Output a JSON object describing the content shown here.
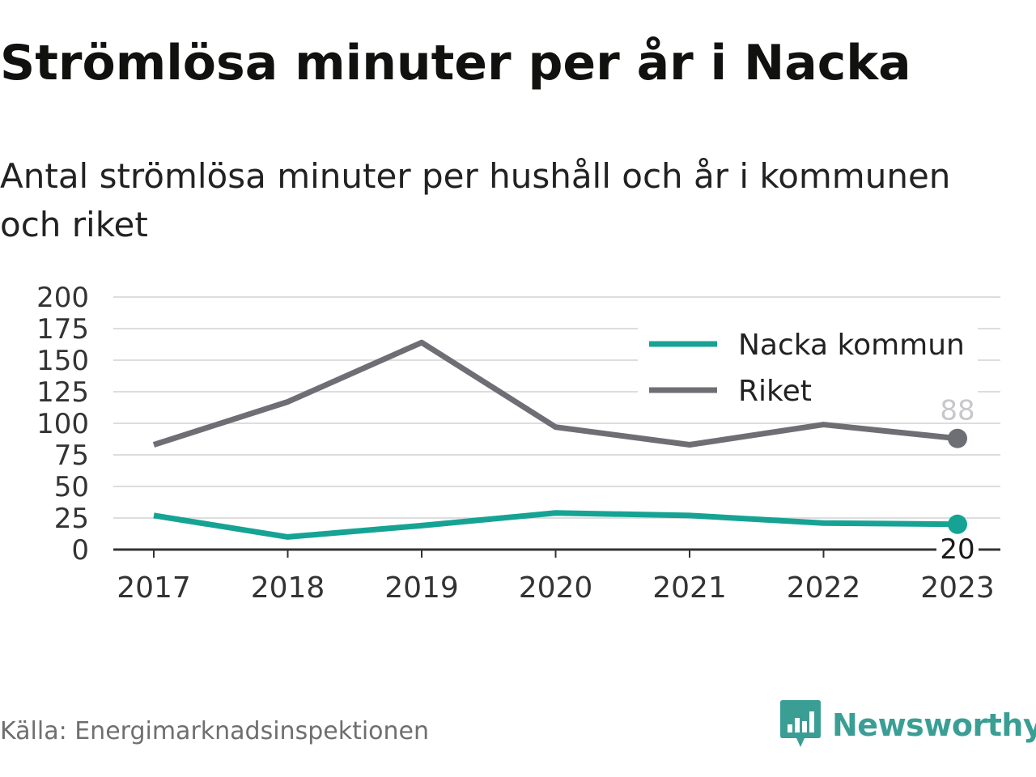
{
  "header": {
    "title": "Strömlösa minuter per år i Nacka",
    "subtitle": "Antal strömlösa minuter per hushåll och år i kommunen och riket"
  },
  "footer": {
    "source": "Källa: Energimarknadsinspektionen",
    "brand": "Newsworthy",
    "brand_icon": "newsworthy-logo-icon"
  },
  "colors": {
    "nacka": "#16a394",
    "riket": "#6e6e75",
    "grid": "#dddddd",
    "axis": "#333333",
    "brand": "#3b9e95"
  },
  "chart_data": {
    "type": "line",
    "title": "Strömlösa minuter per år i Nacka",
    "subtitle": "Antal strömlösa minuter per hushåll och år i kommunen och riket",
    "x": [
      "2017",
      "2018",
      "2019",
      "2020",
      "2021",
      "2022",
      "2023"
    ],
    "y_ticks": [
      "0",
      "25",
      "50",
      "75",
      "100",
      "125",
      "150",
      "175",
      "200"
    ],
    "ylim": [
      0,
      200
    ],
    "grid": true,
    "legend_position": "top-right",
    "series": [
      {
        "name": "Nacka kommun",
        "color": "#16a394",
        "values": [
          27,
          10,
          19,
          29,
          27,
          21,
          20
        ],
        "end_label": "20"
      },
      {
        "name": "Riket",
        "color": "#6e6e75",
        "values": [
          83,
          117,
          164,
          97,
          83,
          99,
          88
        ],
        "end_label": "88"
      }
    ]
  }
}
